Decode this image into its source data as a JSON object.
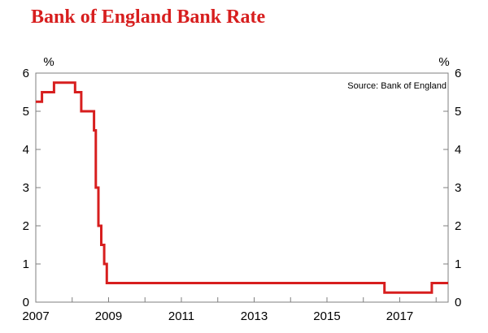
{
  "colors": {
    "title": "#d71e1e",
    "series": "#d71e1e",
    "axis": "#7f7f7f"
  },
  "chart_data": {
    "type": "line",
    "title": "Bank of England Bank Rate",
    "unit_left": "%",
    "unit_right": "%",
    "source": "Source: Bank of England",
    "xlim": [
      2007.0,
      2018.33
    ],
    "ylim": [
      0,
      6
    ],
    "x_ticks": [
      2007,
      2009,
      2011,
      2013,
      2015,
      2017
    ],
    "x_tick_labels": [
      "2007",
      "2009",
      "2011",
      "2013",
      "2015",
      "2017"
    ],
    "y_ticks": [
      0,
      1,
      2,
      3,
      4,
      5,
      6
    ],
    "y_tick_labels": [
      "0",
      "1",
      "2",
      "3",
      "4",
      "5",
      "6"
    ],
    "grid": false,
    "legend": "none",
    "step": true,
    "series": [
      {
        "x": [
          2007.0,
          2007.17,
          2007.5,
          2007.92,
          2008.08,
          2008.17,
          2008.25,
          2008.5,
          2008.6,
          2008.65,
          2008.72,
          2008.8,
          2008.88,
          2008.95,
          2009.0,
          2016.5,
          2016.58,
          2017.8,
          2017.88,
          2018.33
        ],
        "y": [
          5.25,
          5.5,
          5.75,
          5.75,
          5.5,
          5.5,
          5.0,
          5.0,
          4.5,
          3.0,
          2.0,
          1.5,
          1.0,
          0.5,
          0.5,
          0.5,
          0.25,
          0.25,
          0.5,
          0.5
        ]
      }
    ]
  }
}
